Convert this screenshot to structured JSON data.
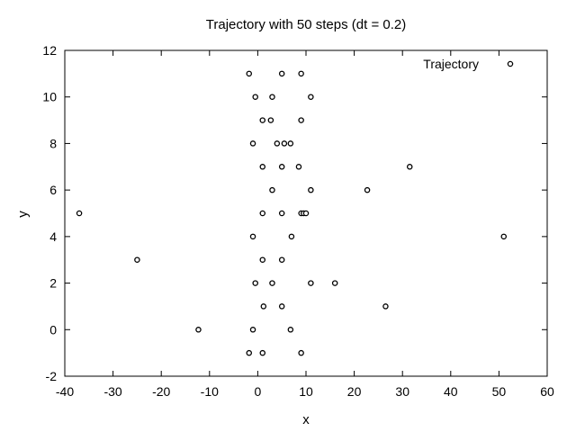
{
  "chart_data": {
    "type": "scatter",
    "title": "Trajectory with 50 steps (dt = 0.2)",
    "xlabel": "x",
    "ylabel": "y",
    "xlim": [
      -40,
      60
    ],
    "ylim": [
      -2,
      12
    ],
    "xticks": [
      "-40",
      "-30",
      "-20",
      "-10",
      "0",
      "10",
      "20",
      "30",
      "40",
      "50",
      "60"
    ],
    "yticks": [
      "-2",
      "0",
      "2",
      "4",
      "6",
      "8",
      "10",
      "12"
    ],
    "grid": false,
    "legend_position": "top-right",
    "series": [
      {
        "name": "Trajectory",
        "marker": "open-circle",
        "color": "#000000",
        "points": [
          [
            -1.8,
            11
          ],
          [
            5,
            11
          ],
          [
            9,
            11
          ],
          [
            -0.5,
            10
          ],
          [
            3,
            10
          ],
          [
            11,
            10
          ],
          [
            1,
            9
          ],
          [
            2.7,
            9
          ],
          [
            9,
            9
          ],
          [
            -1,
            8
          ],
          [
            4,
            8
          ],
          [
            5.5,
            8
          ],
          [
            6.8,
            8
          ],
          [
            1,
            7
          ],
          [
            5,
            7
          ],
          [
            8.5,
            7
          ],
          [
            31.5,
            7
          ],
          [
            3,
            6
          ],
          [
            11,
            6
          ],
          [
            22.7,
            6
          ],
          [
            -37,
            5
          ],
          [
            1,
            5
          ],
          [
            5,
            5
          ],
          [
            9,
            5
          ],
          [
            9.5,
            5
          ],
          [
            10,
            5
          ],
          [
            -1,
            4
          ],
          [
            7,
            4
          ],
          [
            51,
            4
          ],
          [
            -25,
            3
          ],
          [
            1,
            3
          ],
          [
            5,
            3
          ],
          [
            -0.5,
            2
          ],
          [
            3,
            2
          ],
          [
            11,
            2
          ],
          [
            16,
            2
          ],
          [
            1.2,
            1
          ],
          [
            5,
            1
          ],
          [
            26.5,
            1
          ],
          [
            -12.3,
            0
          ],
          [
            -1,
            0
          ],
          [
            6.8,
            0
          ],
          [
            -1.8,
            -1
          ],
          [
            1,
            -1
          ],
          [
            9,
            -1
          ]
        ]
      }
    ]
  }
}
